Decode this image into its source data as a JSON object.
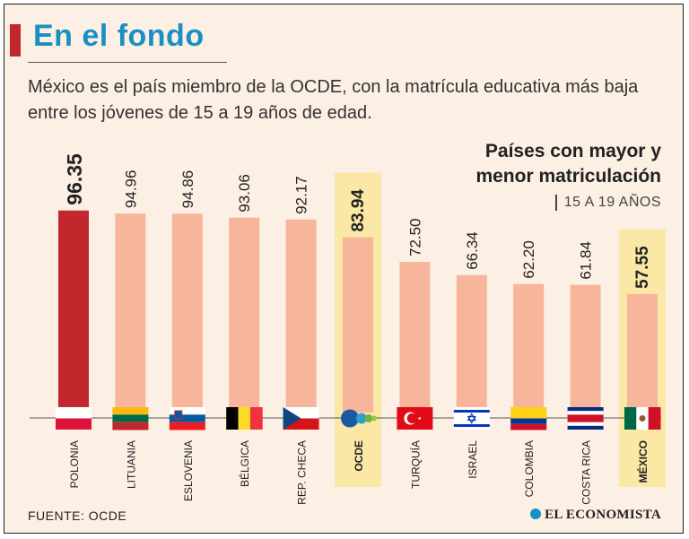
{
  "header": {
    "title": "En el fondo",
    "subtitle": "México es el país miembro de la OCDE, con la matrícula educativa más baja entre los jóvenes de 15 a 19 años de edad."
  },
  "legend": {
    "title_line1": "Países con mayor y",
    "title_line2": "menor matriculación",
    "range": "15 A 19 AÑOS"
  },
  "footer": {
    "source": "FUENTE:  OCDE",
    "brand": "EL ECONOMISTA"
  },
  "colors": {
    "bar": "#f7b59b",
    "bar_top": "#c1272d",
    "highlight": "#fbe8a6",
    "background": "#fcefe4",
    "title": "#1a8fc4"
  },
  "chart_data": {
    "type": "bar",
    "title": "Países con mayor y menor matriculación",
    "subtitle": "15 A 19 AÑOS",
    "categories": [
      "POLONIA",
      "LITUANIA",
      "ESLOVENIA",
      "BÉLGICA",
      "REP. CHECA",
      "OCDE",
      "TURQUÍA",
      "ISRAEL",
      "COLOMBIA",
      "COSTA RICA",
      "MÉXICO"
    ],
    "values": [
      96.35,
      94.96,
      94.86,
      93.06,
      92.17,
      83.94,
      72.5,
      66.34,
      62.2,
      61.84,
      57.55
    ],
    "labels": [
      "96.35",
      "94.96",
      "94.86",
      "93.06",
      "92.17",
      "83.94",
      "72.50",
      "66.34",
      "62.20",
      "61.84",
      "57.55"
    ],
    "flags": [
      "poland-flag-icon",
      "lithuania-flag-icon",
      "slovenia-flag-icon",
      "belgium-flag-icon",
      "czech-flag-icon",
      "oecd-logo-icon",
      "turkey-flag-icon",
      "israel-flag-icon",
      "colombia-flag-icon",
      "costa-rica-flag-icon",
      "mexico-flag-icon"
    ],
    "highlighted": [
      "OCDE",
      "MÉXICO"
    ],
    "top": "POLONIA",
    "ylim": [
      0,
      100
    ],
    "xlabel": "",
    "ylabel": ""
  }
}
